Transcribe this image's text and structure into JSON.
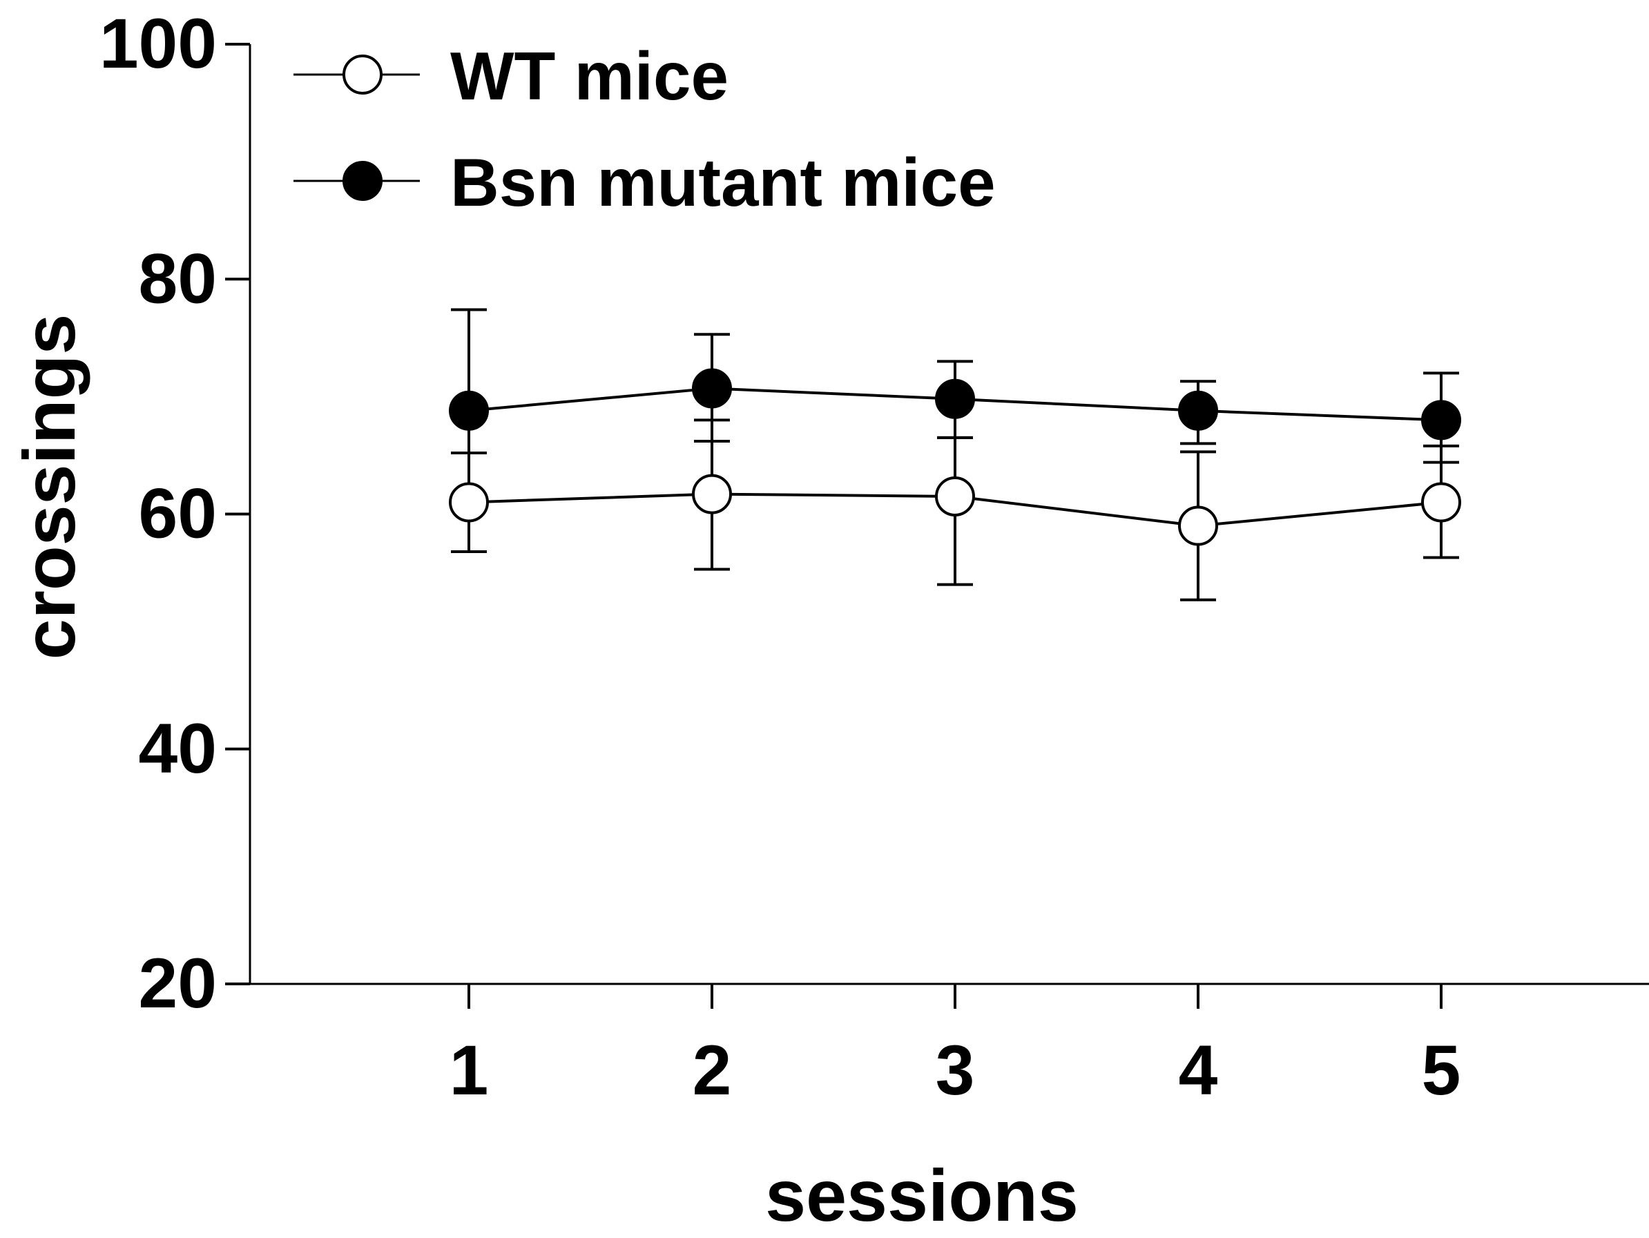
{
  "chart_data": {
    "type": "line",
    "title": "",
    "xlabel": "sessions",
    "ylabel": "crossings",
    "x": [
      1,
      2,
      3,
      4,
      5
    ],
    "x_tick_labels": [
      "1",
      "2",
      "3",
      "4",
      "5"
    ],
    "ylim": [
      20,
      100
    ],
    "y_ticks": [
      20,
      40,
      60,
      80,
      100
    ],
    "y_tick_labels": [
      "20",
      "40",
      "60",
      "80",
      "100"
    ],
    "grid": false,
    "legend_position": "top-left",
    "series": [
      {
        "name": "WT mice",
        "marker": "open-circle",
        "color": "#000000",
        "values": [
          61.0,
          61.7,
          61.5,
          59.0,
          61.0
        ],
        "error_upper": [
          65.2,
          68.0,
          66.5,
          65.3,
          65.8
        ],
        "error_lower": [
          56.8,
          55.3,
          54.0,
          52.7,
          56.3
        ]
      },
      {
        "name": "Bsn mutant mice",
        "marker": "filled-circle",
        "color": "#000000",
        "values": [
          68.8,
          70.7,
          69.8,
          68.8,
          68.0
        ],
        "error_upper": [
          77.4,
          75.3,
          73.0,
          71.3,
          72.0
        ],
        "error_lower": [
          65.2,
          66.2,
          66.5,
          66.0,
          64.4
        ]
      }
    ]
  }
}
